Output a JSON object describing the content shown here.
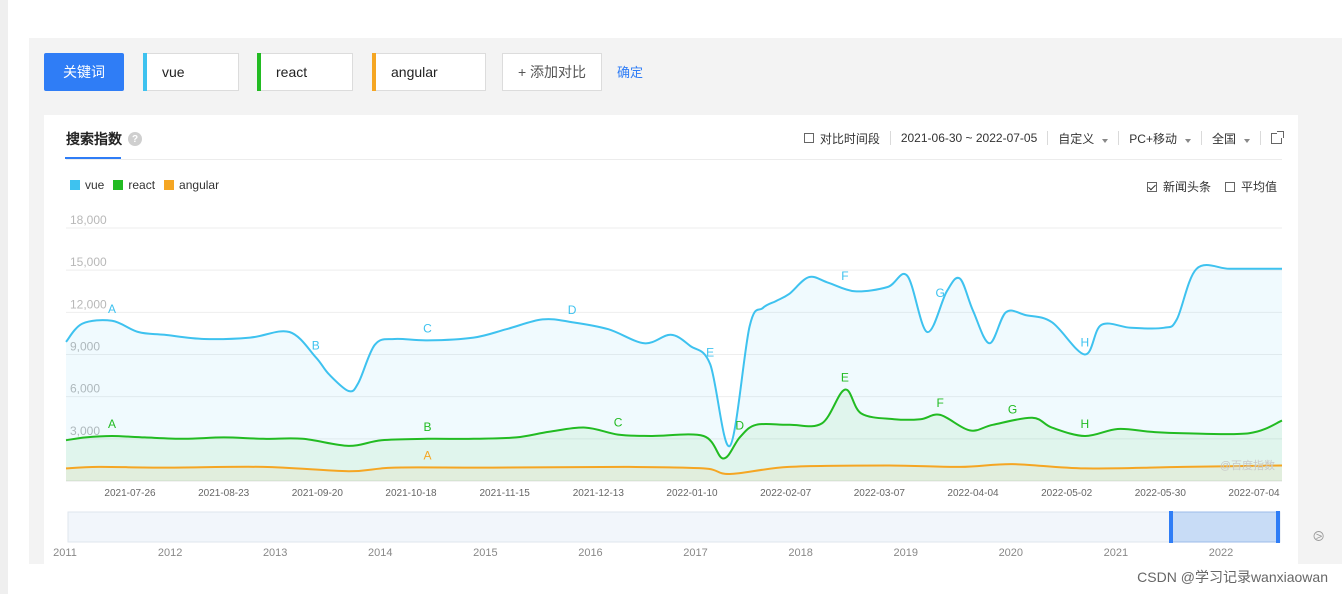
{
  "keyword_bar": {
    "label": "关键词",
    "keywords": [
      {
        "name": "vue",
        "color": "#3ec2ef"
      },
      {
        "name": "react",
        "color": "#22bb22"
      },
      {
        "name": "angular",
        "color": "#f5a623"
      }
    ],
    "add_label": "+ 添加对比",
    "confirm_label": "确定"
  },
  "panel": {
    "title": "搜索指数",
    "help": "?",
    "compare_period": "对比时间段",
    "date_range": "2021-06-30 ~ 2022-07-05",
    "custom": "自定义",
    "device": "PC+移动",
    "region": "全国",
    "news": "新闻头条",
    "average": "平均值"
  },
  "watermark": "@百度指数",
  "footer": "CSDN @学习记录wanxiaowan",
  "chart_data": {
    "type": "line",
    "title": "搜索指数",
    "ylim": [
      0,
      18000
    ],
    "yticks": [
      "18,000",
      "15,000",
      "12,000",
      "9,000",
      "6,000",
      "3,000"
    ],
    "xticks": [
      "2021-07-26",
      "2021-08-23",
      "2021-09-20",
      "2021-10-18",
      "2021-11-15",
      "2021-12-13",
      "2022-01-10",
      "2022-02-07",
      "2022-03-07",
      "2022-04-04",
      "2022-05-02",
      "2022-05-30",
      "2022-07-04"
    ],
    "x_start": 0,
    "x_end": 370,
    "x_unit": "days since 2021-06-30",
    "series": [
      {
        "name": "vue",
        "color": "#3ec2ef",
        "x": [
          0,
          5,
          14,
          22,
          30,
          42,
          56,
          68,
          76,
          80,
          86,
          89,
          94,
          100,
          110,
          124,
          134,
          145,
          154,
          165,
          176,
          184,
          190,
          196,
          202,
          208,
          212,
          216,
          220,
          226,
          232,
          240,
          250,
          256,
          262,
          268,
          272,
          276,
          281,
          286,
          292,
          300,
          310,
          315,
          324,
          334,
          338,
          344,
          354,
          364,
          370
        ],
        "values": [
          9900,
          11200,
          11400,
          10600,
          10400,
          10100,
          10200,
          10600,
          8800,
          7600,
          6400,
          7000,
          9700,
          10100,
          10000,
          10200,
          10800,
          11500,
          11300,
          10800,
          9800,
          10400,
          9600,
          8300,
          2500,
          11000,
          12300,
          12800,
          13300,
          14500,
          14100,
          13500,
          13800,
          14600,
          10600,
          13500,
          14400,
          12100,
          9800,
          12000,
          11800,
          11300,
          9000,
          11100,
          10900,
          10900,
          11500,
          15100,
          15100,
          15100,
          15100
        ]
      },
      {
        "name": "react",
        "color": "#22bb22",
        "x": [
          0,
          6,
          14,
          24,
          36,
          48,
          60,
          72,
          86,
          96,
          110,
          124,
          137,
          147,
          158,
          168,
          178,
          194,
          200,
          205,
          210,
          220,
          230,
          237,
          242,
          252,
          260,
          266,
          275,
          282,
          294,
          300,
          310,
          320,
          330,
          340,
          360,
          370
        ],
        "values": [
          2900,
          3100,
          3200,
          3100,
          3000,
          3100,
          3000,
          3000,
          2500,
          2900,
          3000,
          3000,
          3100,
          3500,
          3800,
          3300,
          3200,
          3200,
          1600,
          3100,
          4000,
          4000,
          4100,
          6500,
          4800,
          4400,
          4400,
          4700,
          3600,
          4000,
          4500,
          3800,
          3200,
          3700,
          3500,
          3400,
          3400,
          4300
        ]
      },
      {
        "name": "angular",
        "color": "#f5a623",
        "x": [
          0,
          10,
          30,
          60,
          86,
          100,
          130,
          170,
          194,
          202,
          220,
          250,
          272,
          288,
          310,
          340,
          370
        ],
        "values": [
          900,
          1000,
          950,
          1000,
          700,
          950,
          950,
          1000,
          900,
          500,
          1000,
          1100,
          1000,
          1200,
          900,
          1000,
          1100
        ]
      }
    ],
    "annotations": {
      "vue": [
        {
          "label": "A",
          "x": 14
        },
        {
          "label": "B",
          "x": 76
        },
        {
          "label": "C",
          "x": 110
        },
        {
          "label": "D",
          "x": 154
        },
        {
          "label": "E",
          "x": 196
        },
        {
          "label": "F",
          "x": 237
        },
        {
          "label": "G",
          "x": 266
        },
        {
          "label": "H",
          "x": 310
        }
      ],
      "react": [
        {
          "label": "A",
          "x": 14
        },
        {
          "label": "B",
          "x": 110
        },
        {
          "label": "C",
          "x": 168
        },
        {
          "label": "D",
          "x": 205
        },
        {
          "label": "E",
          "x": 237
        },
        {
          "label": "F",
          "x": 266
        },
        {
          "label": "G",
          "x": 288
        },
        {
          "label": "H",
          "x": 310
        }
      ],
      "angular": [
        {
          "label": "A",
          "x": 110
        }
      ]
    },
    "range_years": [
      "2011",
      "2012",
      "2013",
      "2014",
      "2015",
      "2016",
      "2017",
      "2018",
      "2019",
      "2020",
      "2021",
      "2022"
    ]
  }
}
